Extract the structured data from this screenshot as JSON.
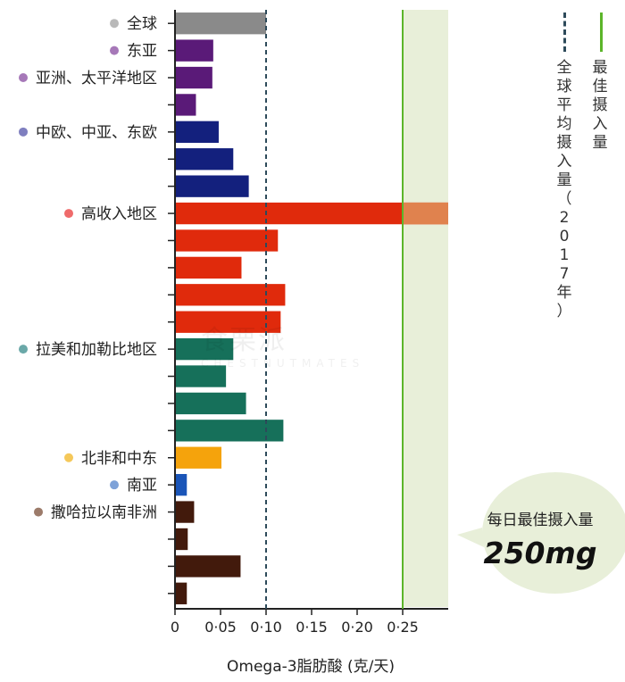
{
  "chart_data": {
    "type": "bar",
    "orientation": "horizontal",
    "xlabel": "Omega-3脂肪酸 (克/天)",
    "xlim": [
      0,
      0.3
    ],
    "xticks": [
      0,
      0.05,
      0.1,
      0.15,
      0.2,
      0.25
    ],
    "xtick_labels": [
      "0",
      "0·05",
      "0·10",
      "0·15",
      "0·20",
      "0·25"
    ],
    "groups": [
      {
        "label": "全球",
        "dot_color": "#b9b9b9",
        "bar_color": "#8a8a8a",
        "values": [
          0.1
        ]
      },
      {
        "label": "东亚",
        "dot_color": "#a678b8",
        "bar_color": "#5a1a78",
        "values": [
          0.042
        ]
      },
      {
        "label": "亚洲、太平洋地区",
        "dot_color": "#a678b8",
        "bar_color": "#5a1a78",
        "values": [
          0.041,
          0.023
        ]
      },
      {
        "label": "中欧、中亚、东欧",
        "dot_color": "#7f7fbf",
        "bar_color": "#13207d",
        "values": [
          0.048,
          0.064,
          0.081
        ]
      },
      {
        "label": "高收入地区",
        "dot_color": "#ef6b6b",
        "bar_color": "#e02a0c",
        "values": [
          0.3,
          0.113,
          0.073,
          0.121,
          0.116
        ]
      },
      {
        "label": "拉美和加勒比地区",
        "dot_color": "#6aa8a8",
        "bar_color": "#16705a",
        "values": [
          0.064,
          0.056,
          0.078,
          0.119
        ]
      },
      {
        "label": "北非和中东",
        "dot_color": "#f5c85a",
        "bar_color": "#f5a30c",
        "values": [
          0.051
        ]
      },
      {
        "label": "南亚",
        "dot_color": "#7ea2d8",
        "bar_color": "#1a55b8",
        "values": [
          0.013
        ]
      },
      {
        "label": "撒哈拉以南非洲",
        "dot_color": "#9c7b6a",
        "bar_color": "#421a0c",
        "values": [
          0.021,
          0.014,
          0.072,
          0.013
        ]
      }
    ],
    "reference_lines": [
      {
        "name": "全球平均摄入量（2017年）",
        "value": 0.1,
        "style": "dashed",
        "color": "#2d4a5a"
      },
      {
        "name": "最佳摄入量",
        "value": 0.25,
        "style": "solid",
        "color": "#5cb52a"
      }
    ],
    "optimal_region": {
      "from": 0.25,
      "to": 0.3,
      "color": "#e8efd9"
    }
  },
  "callout": {
    "label": "每日最佳摄入量",
    "value": "250mg"
  },
  "legend": {
    "dashed_label": "全球平均摄入量（2017年）",
    "solid_label": "最佳摄入量"
  },
  "watermark": {
    "text": "食栗派",
    "subtext": "CHESTNUTMATES"
  }
}
